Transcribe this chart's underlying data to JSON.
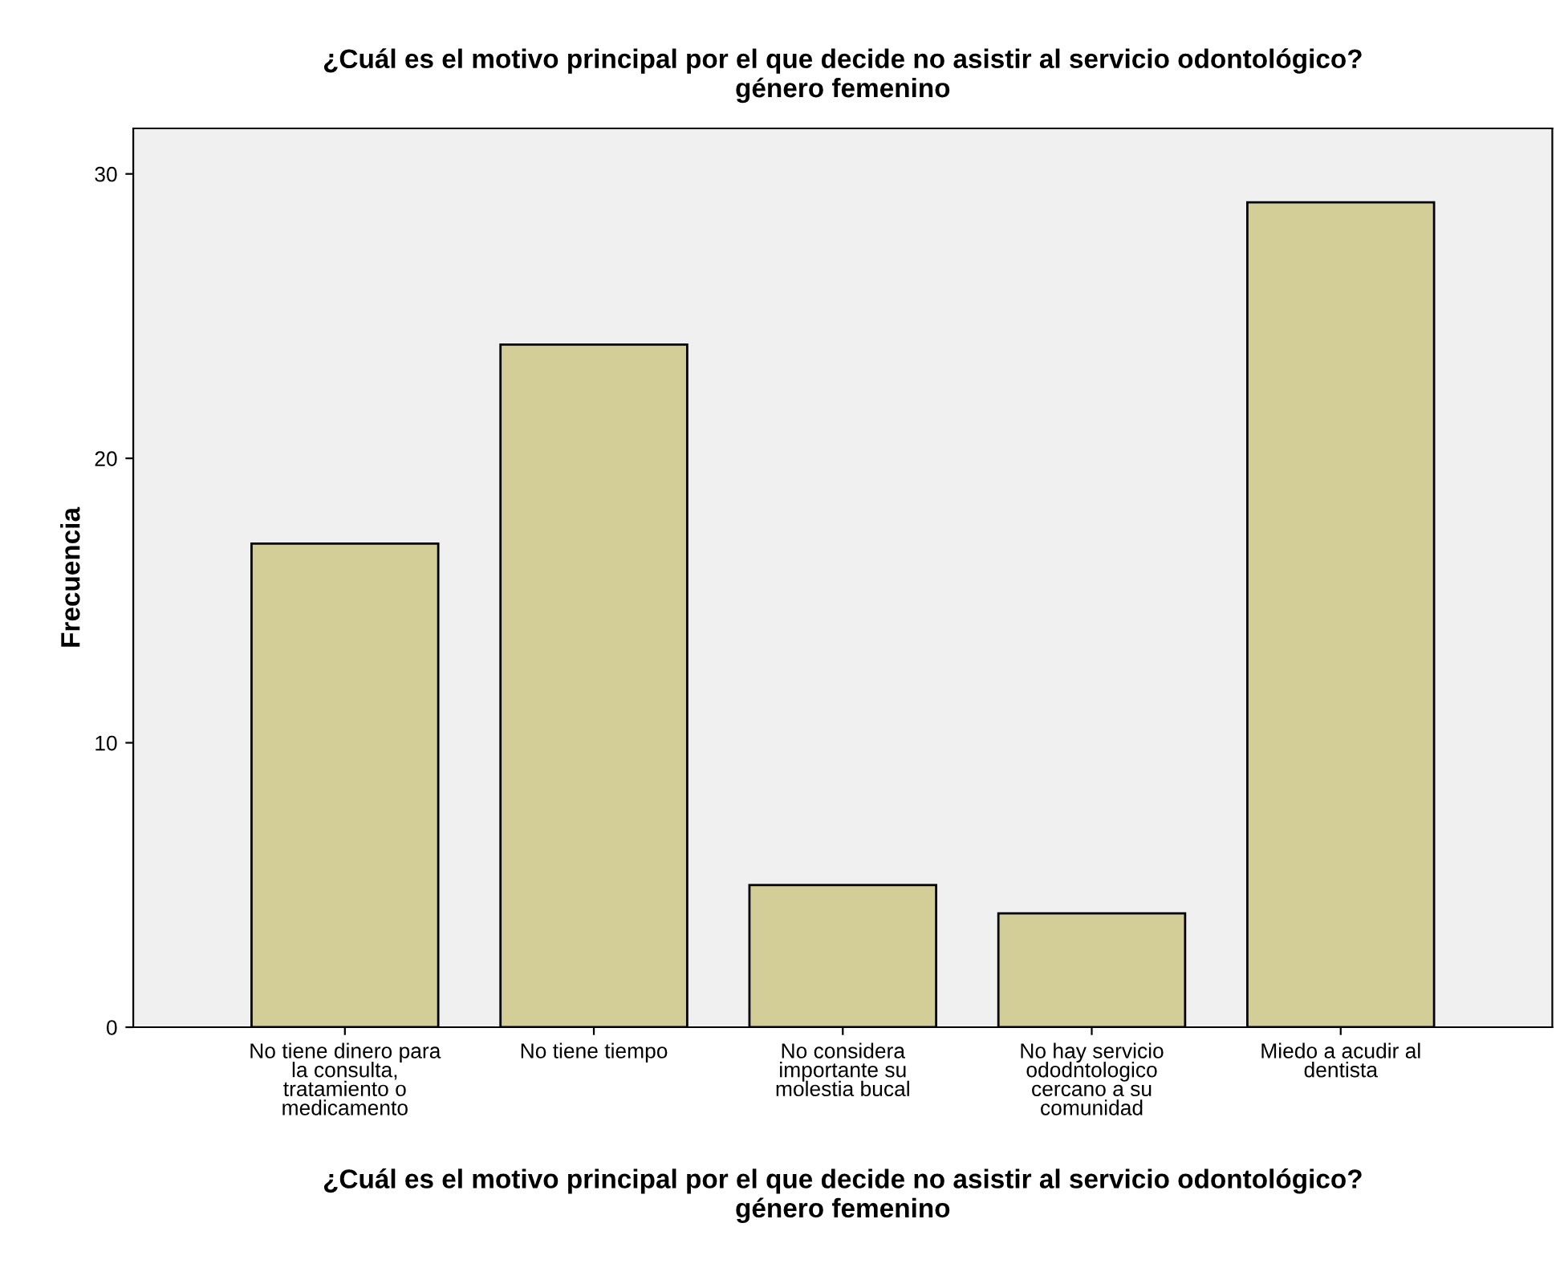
{
  "chart_data": {
    "type": "bar",
    "title": "¿Cuál es el motivo principal por el que decide no asistir al servicio odontológico?\ngénero femenino",
    "xlabel": "¿Cuál es el motivo principal por el que decide no asistir al servicio odontológico?\ngénero femenino",
    "ylabel": "Frecuencia",
    "categories": [
      "No tiene dinero para\nla consulta,\ntratamiento o\nmedicamento",
      "No tiene tiempo",
      "No considera\nimportante su\nmolestia bucal",
      "No hay servicio\nododntologico\ncercano a su\ncomunidad",
      "Miedo a acudir al\ndentista"
    ],
    "values": [
      17,
      24,
      5,
      4,
      29
    ],
    "color": "#d3ce97",
    "ylim": [
      0,
      31.6
    ],
    "yticks": [
      0,
      10,
      20,
      30
    ],
    "grid": false,
    "legend": false
  }
}
